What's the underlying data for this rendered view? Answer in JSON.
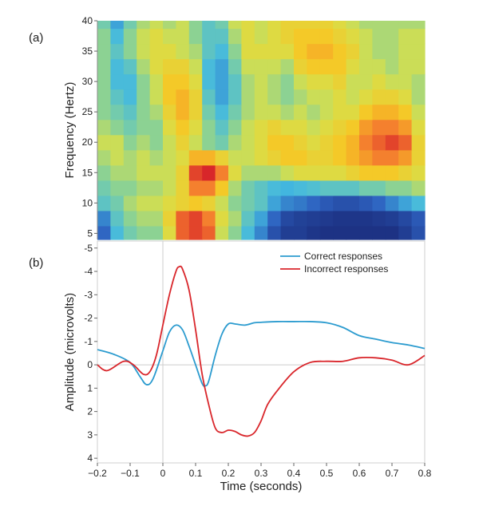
{
  "chart_data": [
    {
      "type": "heatmap",
      "panel_label": "(a)",
      "xlim": [
        -0.2,
        0.8
      ],
      "ylim": [
        4,
        40
      ],
      "ylabel": "Frequency (Hertz)",
      "y_ticks": [
        5,
        10,
        15,
        20,
        25,
        30,
        35,
        40
      ],
      "colormap": [
        "#1a2a7a",
        "#2e62c0",
        "#43b9e0",
        "#7fd0a0",
        "#d8df4a",
        "#f7c624",
        "#f47c2e",
        "#d8262a"
      ],
      "freq_bins": [
        5,
        7.5,
        10,
        12.5,
        15,
        17.5,
        20,
        22.5,
        25,
        27.5,
        30,
        32.5,
        35,
        37.5,
        40
      ],
      "time_bins": [
        -0.18,
        -0.14,
        -0.1,
        -0.06,
        -0.02,
        0.02,
        0.06,
        0.1,
        0.14,
        0.18,
        0.22,
        0.26,
        0.3,
        0.34,
        0.38,
        0.42,
        0.46,
        0.5,
        0.54,
        0.58,
        0.62,
        0.66,
        0.7,
        0.74,
        0.78
      ],
      "values": [
        [
          0.15,
          0.3,
          0.4,
          0.45,
          0.45,
          0.6,
          0.9,
          0.95,
          0.9,
          0.55,
          0.45,
          0.3,
          0.2,
          0.1,
          0.05,
          0.05,
          0.03,
          0.02,
          0.02,
          0.02,
          0.02,
          0.02,
          0.02,
          0.05,
          0.1
        ],
        [
          0.2,
          0.35,
          0.45,
          0.5,
          0.5,
          0.65,
          0.9,
          0.95,
          0.85,
          0.6,
          0.5,
          0.35,
          0.25,
          0.15,
          0.08,
          0.06,
          0.05,
          0.04,
          0.03,
          0.03,
          0.03,
          0.04,
          0.05,
          0.08,
          0.12
        ],
        [
          0.35,
          0.4,
          0.5,
          0.55,
          0.55,
          0.6,
          0.65,
          0.7,
          0.65,
          0.55,
          0.45,
          0.4,
          0.35,
          0.25,
          0.2,
          0.18,
          0.15,
          0.12,
          0.1,
          0.1,
          0.12,
          0.15,
          0.2,
          0.25,
          0.3
        ],
        [
          0.4,
          0.45,
          0.45,
          0.5,
          0.5,
          0.55,
          0.65,
          0.85,
          0.85,
          0.7,
          0.5,
          0.4,
          0.35,
          0.3,
          0.28,
          0.3,
          0.32,
          0.35,
          0.35,
          0.35,
          0.4,
          0.4,
          0.45,
          0.45,
          0.5
        ],
        [
          0.45,
          0.5,
          0.5,
          0.55,
          0.55,
          0.55,
          0.65,
          0.95,
          1.0,
          0.85,
          0.6,
          0.5,
          0.5,
          0.5,
          0.55,
          0.6,
          0.6,
          0.6,
          0.6,
          0.65,
          0.7,
          0.7,
          0.7,
          0.65,
          0.6
        ],
        [
          0.5,
          0.55,
          0.5,
          0.55,
          0.5,
          0.55,
          0.6,
          0.75,
          0.75,
          0.65,
          0.55,
          0.55,
          0.6,
          0.65,
          0.7,
          0.7,
          0.65,
          0.65,
          0.7,
          0.75,
          0.8,
          0.85,
          0.85,
          0.8,
          0.65
        ],
        [
          0.55,
          0.55,
          0.45,
          0.5,
          0.45,
          0.55,
          0.65,
          0.55,
          0.45,
          0.4,
          0.5,
          0.55,
          0.6,
          0.7,
          0.7,
          0.65,
          0.6,
          0.65,
          0.7,
          0.75,
          0.85,
          0.9,
          0.95,
          0.9,
          0.65
        ],
        [
          0.5,
          0.45,
          0.4,
          0.45,
          0.45,
          0.6,
          0.7,
          0.6,
          0.45,
          0.35,
          0.45,
          0.55,
          0.6,
          0.65,
          0.6,
          0.6,
          0.55,
          0.6,
          0.65,
          0.7,
          0.8,
          0.85,
          0.85,
          0.8,
          0.6
        ],
        [
          0.45,
          0.4,
          0.35,
          0.45,
          0.5,
          0.65,
          0.75,
          0.65,
          0.4,
          0.3,
          0.4,
          0.5,
          0.55,
          0.55,
          0.5,
          0.55,
          0.5,
          0.55,
          0.6,
          0.6,
          0.7,
          0.75,
          0.75,
          0.7,
          0.55
        ],
        [
          0.45,
          0.35,
          0.3,
          0.45,
          0.55,
          0.7,
          0.75,
          0.65,
          0.35,
          0.25,
          0.35,
          0.5,
          0.55,
          0.5,
          0.45,
          0.5,
          0.55,
          0.55,
          0.6,
          0.55,
          0.6,
          0.65,
          0.65,
          0.6,
          0.5
        ],
        [
          0.45,
          0.3,
          0.3,
          0.45,
          0.55,
          0.7,
          0.7,
          0.6,
          0.3,
          0.25,
          0.35,
          0.5,
          0.55,
          0.5,
          0.45,
          0.55,
          0.6,
          0.6,
          0.65,
          0.55,
          0.55,
          0.6,
          0.55,
          0.55,
          0.5
        ],
        [
          0.45,
          0.3,
          0.35,
          0.5,
          0.6,
          0.65,
          0.65,
          0.55,
          0.3,
          0.25,
          0.4,
          0.55,
          0.55,
          0.55,
          0.5,
          0.65,
          0.7,
          0.7,
          0.7,
          0.6,
          0.55,
          0.55,
          0.5,
          0.55,
          0.55
        ],
        [
          0.45,
          0.35,
          0.45,
          0.55,
          0.6,
          0.6,
          0.55,
          0.5,
          0.35,
          0.3,
          0.45,
          0.6,
          0.6,
          0.6,
          0.6,
          0.7,
          0.75,
          0.75,
          0.7,
          0.65,
          0.55,
          0.5,
          0.5,
          0.55,
          0.55
        ],
        [
          0.45,
          0.3,
          0.45,
          0.55,
          0.6,
          0.55,
          0.55,
          0.45,
          0.35,
          0.35,
          0.5,
          0.6,
          0.55,
          0.6,
          0.65,
          0.7,
          0.7,
          0.7,
          0.65,
          0.6,
          0.55,
          0.5,
          0.5,
          0.55,
          0.55
        ],
        [
          0.4,
          0.25,
          0.4,
          0.5,
          0.55,
          0.5,
          0.55,
          0.45,
          0.35,
          0.4,
          0.55,
          0.6,
          0.55,
          0.6,
          0.65,
          0.65,
          0.65,
          0.65,
          0.6,
          0.55,
          0.5,
          0.5,
          0.5,
          0.5,
          0.5
        ]
      ]
    },
    {
      "type": "line",
      "panel_label": "(b)",
      "xlabel": "Time (seconds)",
      "ylabel": "Amplitude (microvolts)",
      "xlim": [
        -0.2,
        0.8
      ],
      "ylim": [
        4.2,
        -5.3
      ],
      "y_inverted": true,
      "x_ticks": [
        -0.2,
        -0.1,
        0,
        0.1,
        0.2,
        0.3,
        0.4,
        0.5,
        0.6,
        0.7,
        0.8
      ],
      "y_ticks": [
        4,
        3,
        2,
        1,
        0,
        -1,
        -2,
        -3,
        -4,
        -5
      ],
      "legend_position": "top-right",
      "series": [
        {
          "name": "Correct responses",
          "color": "#2b9bcf",
          "x": [
            -0.2,
            -0.15,
            -0.1,
            -0.07,
            -0.05,
            -0.03,
            0.0,
            0.02,
            0.04,
            0.06,
            0.08,
            0.1,
            0.12,
            0.13,
            0.14,
            0.16,
            0.18,
            0.2,
            0.22,
            0.25,
            0.28,
            0.3,
            0.35,
            0.4,
            0.45,
            0.5,
            0.55,
            0.6,
            0.65,
            0.7,
            0.75,
            0.8
          ],
          "y": [
            -0.65,
            -0.45,
            -0.1,
            0.5,
            0.85,
            0.6,
            -0.6,
            -1.4,
            -1.7,
            -1.5,
            -0.8,
            0.0,
            0.8,
            0.9,
            0.7,
            -0.4,
            -1.3,
            -1.75,
            -1.75,
            -1.7,
            -1.8,
            -1.82,
            -1.85,
            -1.85,
            -1.85,
            -1.8,
            -1.6,
            -1.25,
            -1.1,
            -0.95,
            -0.85,
            -0.7
          ]
        },
        {
          "name": "Incorrect responses",
          "color": "#d9262b",
          "x": [
            -0.2,
            -0.17,
            -0.12,
            -0.09,
            -0.06,
            -0.04,
            -0.02,
            0.0,
            0.02,
            0.04,
            0.05,
            0.06,
            0.08,
            0.1,
            0.12,
            0.14,
            0.16,
            0.18,
            0.2,
            0.22,
            0.24,
            0.26,
            0.28,
            0.3,
            0.32,
            0.35,
            0.4,
            0.45,
            0.5,
            0.55,
            0.6,
            0.65,
            0.7,
            0.75,
            0.8
          ],
          "y": [
            0.0,
            0.25,
            -0.15,
            0.0,
            0.4,
            0.3,
            -0.4,
            -1.7,
            -3.0,
            -4.0,
            -4.2,
            -4.1,
            -3.2,
            -1.5,
            0.4,
            1.7,
            2.7,
            2.9,
            2.8,
            2.85,
            3.0,
            3.05,
            2.9,
            2.4,
            1.7,
            1.1,
            0.3,
            -0.1,
            -0.15,
            -0.15,
            -0.3,
            -0.3,
            -0.2,
            0.0,
            -0.4
          ]
        }
      ]
    }
  ]
}
